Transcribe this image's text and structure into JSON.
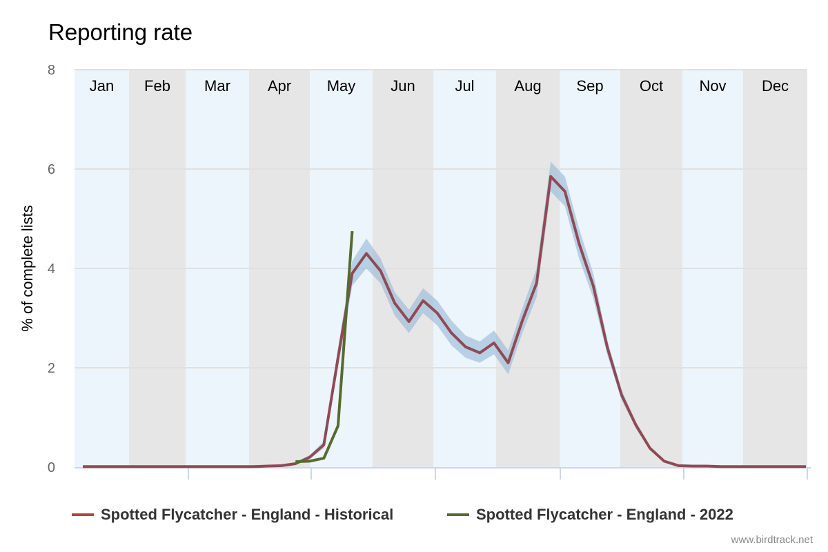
{
  "chart_data": {
    "type": "line",
    "title": "Reporting rate",
    "xlabel": "",
    "ylabel": "% of complete lists",
    "ylim": [
      0,
      8
    ],
    "yticks": [
      "0",
      "2",
      "4",
      "6",
      "8"
    ],
    "months": [
      "Jan",
      "Feb",
      "Mar",
      "Apr",
      "May",
      "Jun",
      "Jul",
      "Aug",
      "Sep",
      "Oct",
      "Nov",
      "Dec"
    ],
    "x_unit": "week",
    "grid": true,
    "legend_position": "bottom",
    "series": [
      {
        "name": "Spotted Flycatcher - England - Historical",
        "color": "#8f4a55",
        "legend_color": "#aa4643",
        "start_week": 1,
        "values": [
          0.01,
          0.01,
          0.01,
          0.01,
          0.01,
          0.01,
          0.01,
          0.01,
          0.01,
          0.01,
          0.01,
          0.01,
          0.01,
          0.02,
          0.03,
          0.07,
          0.2,
          0.45,
          2.2,
          3.9,
          4.3,
          3.95,
          3.3,
          2.93,
          3.35,
          3.1,
          2.7,
          2.42,
          2.3,
          2.5,
          2.1,
          2.95,
          3.7,
          5.85,
          5.55,
          4.5,
          3.65,
          2.4,
          1.45,
          0.85,
          0.38,
          0.12,
          0.03,
          0.02,
          0.02,
          0.01,
          0.01,
          0.01,
          0.01,
          0.01,
          0.01,
          0.01
        ],
        "upper": [
          0.01,
          0.01,
          0.01,
          0.01,
          0.01,
          0.01,
          0.01,
          0.01,
          0.01,
          0.01,
          0.01,
          0.01,
          0.01,
          0.02,
          0.04,
          0.09,
          0.24,
          0.52,
          2.4,
          4.15,
          4.6,
          4.2,
          3.52,
          3.17,
          3.6,
          3.35,
          2.95,
          2.65,
          2.53,
          2.75,
          2.35,
          3.2,
          4.0,
          6.15,
          5.85,
          4.8,
          3.9,
          2.55,
          1.55,
          0.92,
          0.42,
          0.14,
          0.04,
          0.02,
          0.02,
          0.01,
          0.01,
          0.01,
          0.01,
          0.01,
          0.01,
          0.01
        ],
        "lower": [
          0.0,
          0.0,
          0.0,
          0.0,
          0.0,
          0.0,
          0.0,
          0.0,
          0.0,
          0.0,
          0.0,
          0.0,
          0.0,
          0.01,
          0.02,
          0.05,
          0.16,
          0.38,
          2.0,
          3.65,
          4.0,
          3.7,
          3.05,
          2.7,
          3.1,
          2.85,
          2.45,
          2.2,
          2.1,
          2.27,
          1.87,
          2.7,
          3.42,
          5.55,
          5.25,
          4.2,
          3.4,
          2.25,
          1.35,
          0.78,
          0.34,
          0.1,
          0.02,
          0.01,
          0.01,
          0.0,
          0.0,
          0.0,
          0.0,
          0.0,
          0.0,
          0.0
        ]
      },
      {
        "name": "Spotted Flycatcher - England - 2022",
        "color": "#556b2f",
        "legend_color": "#556b2f",
        "start_week": 16,
        "values": [
          0.11,
          0.12,
          0.18,
          0.83,
          4.75
        ]
      }
    ]
  },
  "credit": "www.birdtrack.net",
  "colors": {
    "band": "#9dbbd8",
    "month_light": "#ecf5fb",
    "month_dark": "#e6e6e6"
  }
}
